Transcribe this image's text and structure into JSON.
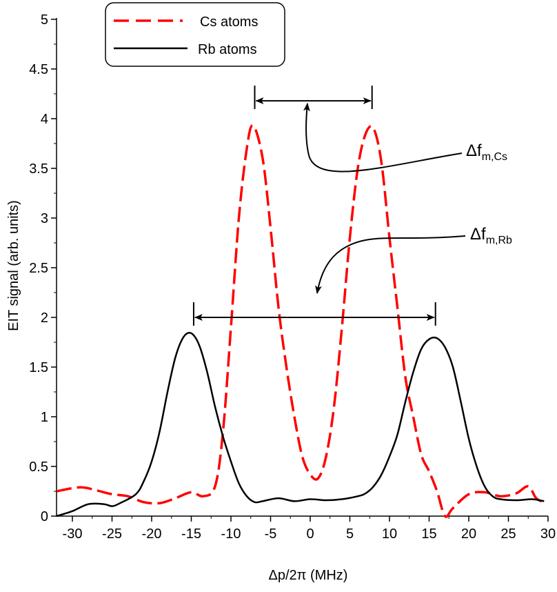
{
  "chart_data": {
    "type": "line",
    "title": "",
    "xlabel": "Δp/2π   (MHz)",
    "ylabel": "EIT signal  (arb. units)",
    "xlim": [
      -32,
      30
    ],
    "ylim": [
      0,
      5
    ],
    "xticks": [
      -30,
      -25,
      -20,
      -15,
      -10,
      -5,
      0,
      5,
      10,
      15,
      20,
      25,
      30
    ],
    "yticks": [
      0,
      0.5,
      1,
      1.5,
      2,
      2.5,
      3,
      3.5,
      4,
      4.5,
      5
    ],
    "xtick_labels": [
      "-30",
      "-25",
      "-20",
      "-15",
      "-10",
      "-5",
      "0",
      "5",
      "10",
      "15",
      "20",
      "25",
      "30"
    ],
    "ytick_labels": [
      "0",
      "0.5",
      "1",
      "1.5",
      "2",
      "2.5",
      "3",
      "3.5",
      "4",
      "4.5",
      "5"
    ],
    "legend_position": "top-left",
    "series": [
      {
        "name": "Cs atoms",
        "color": "#ff0000",
        "style": "dashed",
        "x": [
          -32,
          -29,
          -27,
          -25,
          -23,
          -21,
          -19,
          -17,
          -15,
          -13.5,
          -12,
          -11,
          -10,
          -9,
          -8,
          -7.2,
          -6,
          -5,
          -4,
          -3,
          -2,
          -1,
          0,
          1,
          2,
          3,
          4,
          5,
          6,
          7,
          8,
          9,
          10,
          11,
          12,
          13,
          14,
          15,
          16,
          17,
          18,
          20,
          22,
          24,
          26,
          27.5,
          28.5,
          29.5
        ],
        "y": [
          0.25,
          0.29,
          0.26,
          0.22,
          0.2,
          0.14,
          0.13,
          0.18,
          0.24,
          0.2,
          0.3,
          0.85,
          1.9,
          3.0,
          3.7,
          3.93,
          3.6,
          2.9,
          2.1,
          1.5,
          1.0,
          0.6,
          0.42,
          0.38,
          0.6,
          1.1,
          1.9,
          2.8,
          3.5,
          3.85,
          3.9,
          3.55,
          2.8,
          2.1,
          1.4,
          1.0,
          0.62,
          0.45,
          0.25,
          0.0,
          0.08,
          0.22,
          0.24,
          0.2,
          0.23,
          0.3,
          0.18,
          0.14
        ]
      },
      {
        "name": "Rb atoms",
        "color": "#000000",
        "style": "solid",
        "x": [
          -32,
          -30,
          -28,
          -26,
          -25,
          -24,
          -22,
          -21,
          -20,
          -19,
          -18,
          -17,
          -16,
          -15,
          -14,
          -13,
          -12,
          -11,
          -10,
          -9,
          -8,
          -7,
          -6,
          -4,
          -2,
          0,
          2,
          4,
          6,
          7,
          8,
          9,
          10,
          11,
          12,
          13,
          14,
          15,
          16,
          17,
          18,
          19,
          20,
          21,
          22,
          23,
          24,
          26,
          28,
          29.5
        ],
        "y": [
          0.0,
          0.05,
          0.12,
          0.12,
          0.1,
          0.13,
          0.22,
          0.35,
          0.55,
          0.85,
          1.25,
          1.6,
          1.8,
          1.84,
          1.72,
          1.45,
          1.1,
          0.8,
          0.55,
          0.33,
          0.2,
          0.14,
          0.15,
          0.18,
          0.15,
          0.17,
          0.16,
          0.17,
          0.2,
          0.23,
          0.3,
          0.42,
          0.6,
          0.82,
          1.15,
          1.45,
          1.68,
          1.78,
          1.79,
          1.7,
          1.5,
          1.15,
          0.78,
          0.5,
          0.3,
          0.2,
          0.17,
          0.16,
          0.17,
          0.15
        ]
      }
    ],
    "annotations": [
      {
        "label": "Δf",
        "subscript": "m,Cs",
        "arrow_x_range": [
          -7,
          7.8
        ],
        "arrow_y": 4.18
      },
      {
        "label": "Δf",
        "subscript": "m,Rb",
        "arrow_x_range": [
          -14.7,
          15.8
        ],
        "arrow_y": 2.0
      }
    ]
  }
}
